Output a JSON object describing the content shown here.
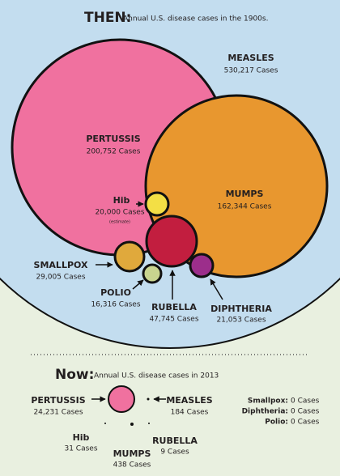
{
  "then": {
    "title": "THEN:",
    "subtitle": "Annual U.S. disease cases in the 1900s.",
    "diseases": [
      {
        "name": "MEASLES",
        "cases": "530,217 Cases"
      },
      {
        "name": "PERTUSSIS",
        "cases": "200,752 Cases"
      },
      {
        "name": "MUMPS",
        "cases": "162,344 Cases"
      },
      {
        "name": "Hib",
        "cases": "20,000 Cases",
        "note": "(estimate)"
      },
      {
        "name": "SMALLPOX",
        "cases": "29,005 Cases"
      },
      {
        "name": "POLIO",
        "cases": "16,316 Cases"
      },
      {
        "name": "RUBELLA",
        "cases": "47,745 Cases"
      },
      {
        "name": "DIPHTHERIA",
        "cases": "21,053 Cases"
      }
    ]
  },
  "now": {
    "title": "Now:",
    "subtitle": "Annual U.S. disease cases in 2013",
    "diseases": [
      {
        "name": "PERTUSSIS",
        "cases": "24,231 Cases"
      },
      {
        "name": "MEASLES",
        "cases": "184 Cases"
      },
      {
        "name": "Hib",
        "cases": "31 Cases"
      },
      {
        "name": "MUMPS",
        "cases": "438 Cases"
      },
      {
        "name": "RUBELLA",
        "cases": "9 Cases"
      }
    ],
    "zero": [
      {
        "name": "Smallpox:",
        "cases": "0 Cases"
      },
      {
        "name": "Diphtheria:",
        "cases": "0 Cases"
      },
      {
        "name": "Polio:",
        "cases": "0 Cases"
      }
    ]
  }
}
